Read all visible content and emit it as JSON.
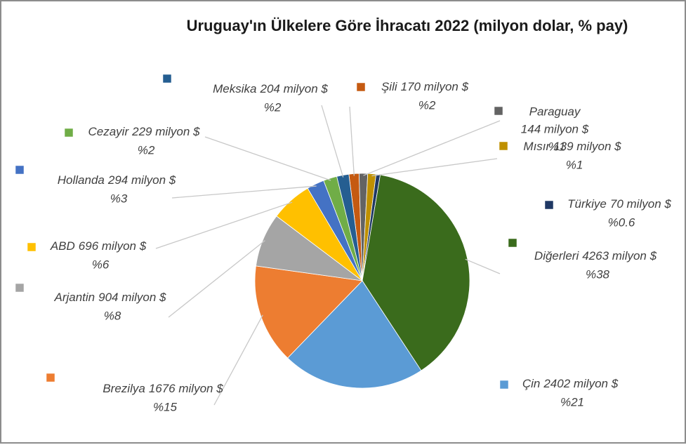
{
  "chart_data": {
    "type": "pie",
    "title": "Uruguay'ın Ülkelere Göre İhracatı 2022 (milyon dolar, % pay)",
    "categories": [
      "Şili",
      "Paraguay",
      "Mısır",
      "Türkiye",
      "Diğerleri",
      "Çin",
      "Brezilya",
      "Arjantin",
      "ABD",
      "Hollanda",
      "Cezayir",
      "Meksika"
    ],
    "values": [
      170,
      144,
      139,
      70,
      4263,
      2402,
      1676,
      904,
      696,
      294,
      229,
      204
    ],
    "value_labels": [
      "170 milyon $",
      "144 milyon $",
      "139 milyon $",
      "70 milyon $",
      "4263 milyon $",
      "2402 milyon $",
      "1676 milyon $",
      "904 milyon $",
      "696 milyon $",
      "294 milyon $",
      "229 milyon $",
      "204 milyon $"
    ],
    "percents": [
      2,
      1,
      1,
      0.6,
      38,
      21,
      15,
      8,
      6,
      3,
      2,
      2
    ],
    "percent_labels": [
      "%2",
      "%1",
      "%1",
      "%0.6",
      "%38",
      "%21",
      "%15",
      "%8",
      "%6",
      "%3",
      "%2",
      "%2"
    ],
    "colors": [
      "#c55a11",
      "#636363",
      "#bf9000",
      "#1f3864",
      "#3a6b1c",
      "#5b9bd5",
      "#ed7d31",
      "#a5a5a5",
      "#ffc000",
      "#4472c4",
      "#70ad47",
      "#255e91"
    ]
  }
}
